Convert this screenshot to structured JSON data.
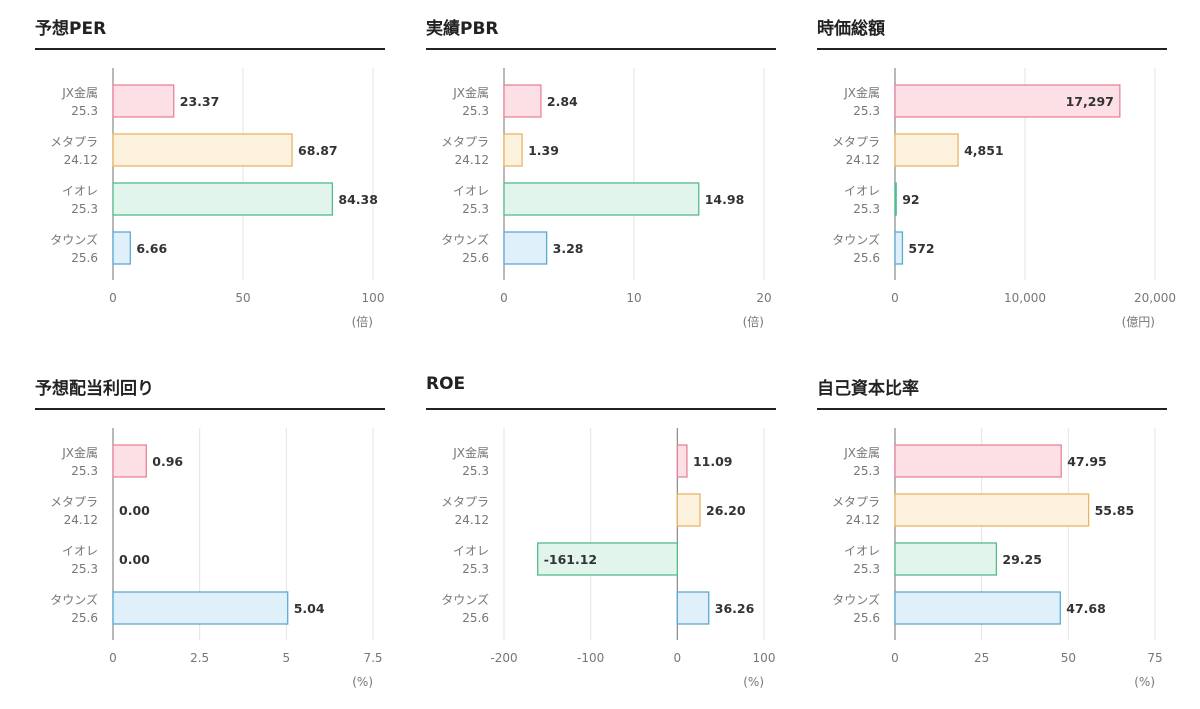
{
  "colors": {
    "series": [
      {
        "stroke": "#e8839a",
        "fill": "#fde0e6"
      },
      {
        "stroke": "#eab464",
        "fill": "#fdf2de"
      },
      {
        "stroke": "#55bb8c",
        "fill": "#e2f5ec"
      },
      {
        "stroke": "#5aaad4",
        "fill": "#e0f0fa"
      }
    ],
    "grid": "#e3e3e3",
    "axis": "#888888"
  },
  "chart_data": [
    {
      "title": "予想PER",
      "type": "bar",
      "orientation": "horizontal",
      "categories": [
        [
          "JX金属",
          "25.3"
        ],
        [
          "メタプラ",
          "24.12"
        ],
        [
          "イオレ",
          "25.3"
        ],
        [
          "タウンズ",
          "25.6"
        ]
      ],
      "values": [
        23.37,
        68.87,
        84.38,
        6.66
      ],
      "value_labels": [
        "23.37",
        "68.87",
        "84.38",
        "6.66"
      ],
      "xlim": [
        0,
        100
      ],
      "ticks": [
        0,
        50,
        100
      ],
      "tick_labels": [
        "0",
        "50",
        "100"
      ],
      "unit": "(倍)",
      "grid": true
    },
    {
      "title": "実績PBR",
      "type": "bar",
      "orientation": "horizontal",
      "categories": [
        [
          "JX金属",
          "25.3"
        ],
        [
          "メタプラ",
          "24.12"
        ],
        [
          "イオレ",
          "25.3"
        ],
        [
          "タウンズ",
          "25.6"
        ]
      ],
      "values": [
        2.84,
        1.39,
        14.98,
        3.28
      ],
      "value_labels": [
        "2.84",
        "1.39",
        "14.98",
        "3.28"
      ],
      "xlim": [
        0,
        20
      ],
      "ticks": [
        0,
        10,
        20
      ],
      "tick_labels": [
        "0",
        "10",
        "20"
      ],
      "unit": "(倍)",
      "grid": true
    },
    {
      "title": "時価総額",
      "type": "bar",
      "orientation": "horizontal",
      "categories": [
        [
          "JX金属",
          "25.3"
        ],
        [
          "メタプラ",
          "24.12"
        ],
        [
          "イオレ",
          "25.3"
        ],
        [
          "タウンズ",
          "25.6"
        ]
      ],
      "values": [
        17297,
        4851,
        92,
        572
      ],
      "value_labels": [
        "17,297",
        "4,851",
        "92",
        "572"
      ],
      "xlim": [
        0,
        20000
      ],
      "ticks": [
        0,
        10000,
        20000
      ],
      "tick_labels": [
        "0",
        "10,000",
        "20,000"
      ],
      "unit": "(億円)",
      "grid": true
    },
    {
      "title": "予想配当利回り",
      "type": "bar",
      "orientation": "horizontal",
      "categories": [
        [
          "JX金属",
          "25.3"
        ],
        [
          "メタプラ",
          "24.12"
        ],
        [
          "イオレ",
          "25.3"
        ],
        [
          "タウンズ",
          "25.6"
        ]
      ],
      "values": [
        0.96,
        0.0,
        0.0,
        5.04
      ],
      "value_labels": [
        "0.96",
        "0.00",
        "0.00",
        "5.04"
      ],
      "xlim": [
        0,
        7.5
      ],
      "ticks": [
        0,
        2.5,
        5,
        7.5
      ],
      "tick_labels": [
        "0",
        "2.5",
        "5",
        "7.5"
      ],
      "unit": "(%)",
      "grid": true
    },
    {
      "title": "ROE",
      "type": "bar",
      "orientation": "horizontal",
      "categories": [
        [
          "JX金属",
          "25.3"
        ],
        [
          "メタプラ",
          "24.12"
        ],
        [
          "イオレ",
          "25.3"
        ],
        [
          "タウンズ",
          "25.6"
        ]
      ],
      "values": [
        11.09,
        26.2,
        -161.12,
        36.26
      ],
      "value_labels": [
        "11.09",
        "26.20",
        "-161.12",
        "36.26"
      ],
      "xlim": [
        -200,
        100
      ],
      "ticks": [
        -200,
        -100,
        0,
        100
      ],
      "tick_labels": [
        "-200",
        "-100",
        "0",
        "100"
      ],
      "unit": "(%)",
      "grid": true
    },
    {
      "title": "自己資本比率",
      "type": "bar",
      "orientation": "horizontal",
      "categories": [
        [
          "JX金属",
          "25.3"
        ],
        [
          "メタプラ",
          "24.12"
        ],
        [
          "イオレ",
          "25.3"
        ],
        [
          "タウンズ",
          "25.6"
        ]
      ],
      "values": [
        47.95,
        55.85,
        29.25,
        47.68
      ],
      "value_labels": [
        "47.95",
        "55.85",
        "29.25",
        "47.68"
      ],
      "xlim": [
        0,
        75
      ],
      "ticks": [
        0,
        25,
        50,
        75
      ],
      "tick_labels": [
        "0",
        "25",
        "50",
        "75"
      ],
      "unit": "(%)",
      "grid": true
    }
  ]
}
